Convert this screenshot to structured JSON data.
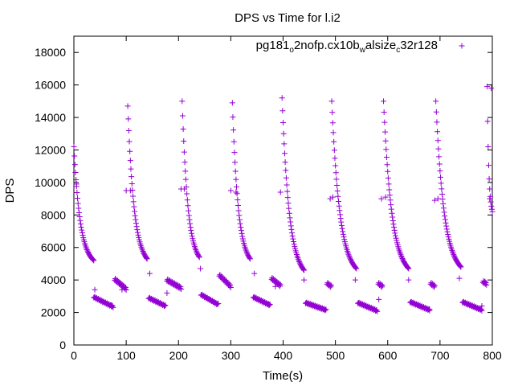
{
  "chart_data": {
    "type": "scatter",
    "title": "DPS vs Time for l.i2",
    "xlabel": "Time(s)",
    "ylabel": "DPS",
    "xlim": [
      0,
      800
    ],
    "ylim": [
      0,
      19000
    ],
    "xticks": [
      0,
      100,
      200,
      300,
      400,
      500,
      600,
      700,
      800
    ],
    "yticks": [
      0,
      2000,
      4000,
      6000,
      8000,
      10000,
      12000,
      14000,
      16000,
      18000
    ],
    "grid": false,
    "legend_position": "top-right",
    "marker": "+",
    "series": [
      {
        "name": "pg181_o2nofp.cx10b_walsize_c32r128",
        "legend_parts": [
          {
            "text": "pg181",
            "shift": "base"
          },
          {
            "text": "o",
            "shift": "sub"
          },
          {
            "text": "2nofp.cx10b",
            "shift": "base"
          },
          {
            "text": "w",
            "shift": "sub"
          },
          {
            "text": "alsize",
            "shift": "base"
          },
          {
            "text": "c",
            "shift": "sub"
          },
          {
            "text": "32r128",
            "shift": "base"
          }
        ],
        "color": "#9400d3",
        "cycles": [
          {
            "start": 0,
            "peak": 12200,
            "end": 38,
            "high_end": 5200,
            "low_start": 38,
            "low_end": 75,
            "low_hi": 2950,
            "low_lo": 2350,
            "plateau_start": 78,
            "plateau_end": 100,
            "plateau_hi": 4050,
            "plateau_lo": 3450
          },
          {
            "start": 103,
            "peak": 14700,
            "end": 140,
            "high_end": 5300,
            "low_start": 143,
            "low_end": 175,
            "low_hi": 2900,
            "low_lo": 2400,
            "plateau_start": 178,
            "plateau_end": 205,
            "plateau_hi": 4000,
            "plateau_lo": 3500
          },
          {
            "start": 207,
            "peak": 15000,
            "end": 240,
            "high_end": 5400,
            "low_start": 243,
            "low_end": 275,
            "low_hi": 3100,
            "low_lo": 2500,
            "plateau_start": 278,
            "plateau_end": 300,
            "plateau_hi": 4300,
            "plateau_lo": 3600
          },
          {
            "start": 303,
            "peak": 14900,
            "end": 337,
            "high_end": 5300,
            "low_start": 343,
            "low_end": 375,
            "low_hi": 2950,
            "low_lo": 2450,
            "plateau_start": 378,
            "plateau_end": 395,
            "plateau_hi": 4100,
            "plateau_lo": 3650
          },
          {
            "start": 398,
            "peak": 15200,
            "end": 440,
            "high_end": 4600,
            "low_start": 443,
            "low_end": 482,
            "low_hi": 2600,
            "low_lo": 2150,
            "plateau_start": 484,
            "plateau_end": 492,
            "plateau_hi": 3800,
            "plateau_lo": 3600
          },
          {
            "start": 493,
            "peak": 15000,
            "end": 540,
            "high_end": 4700,
            "low_start": 543,
            "low_end": 580,
            "low_hi": 2600,
            "low_lo": 2100,
            "plateau_start": 582,
            "plateau_end": 590,
            "plateau_hi": 3800,
            "plateau_lo": 3600
          },
          {
            "start": 592,
            "peak": 15000,
            "end": 640,
            "high_end": 4700,
            "low_start": 643,
            "low_end": 680,
            "low_hi": 2650,
            "low_lo": 2150,
            "plateau_start": 682,
            "plateau_end": 690,
            "plateau_hi": 3800,
            "plateau_lo": 3600
          },
          {
            "start": 692,
            "peak": 15000,
            "end": 740,
            "high_end": 4800,
            "low_start": 743,
            "low_end": 780,
            "low_hi": 2650,
            "low_lo": 2150,
            "plateau_start": 782,
            "plateau_end": 789,
            "plateau_hi": 3900,
            "plateau_lo": 3750
          },
          {
            "start": 790,
            "peak": 15900,
            "end": 800,
            "high_end": 8200
          }
        ],
        "extra_points": [
          [
            5,
            9900
          ],
          [
            40,
            3400
          ],
          [
            72,
            2450
          ],
          [
            92,
            3400
          ],
          [
            100,
            9500
          ],
          [
            108,
            9500
          ],
          [
            145,
            4400
          ],
          [
            178,
            3200
          ],
          [
            195,
            3700
          ],
          [
            205,
            9600
          ],
          [
            211,
            9600
          ],
          [
            242,
            4700
          ],
          [
            276,
            2550
          ],
          [
            300,
            9500
          ],
          [
            310,
            9400
          ],
          [
            345,
            4400
          ],
          [
            373,
            2500
          ],
          [
            385,
            3600
          ],
          [
            395,
            9400
          ],
          [
            440,
            4000
          ],
          [
            490,
            9000
          ],
          [
            495,
            9100
          ],
          [
            538,
            4000
          ],
          [
            583,
            2800
          ],
          [
            588,
            9000
          ],
          [
            596,
            9100
          ],
          [
            640,
            4000
          ],
          [
            680,
            2200
          ],
          [
            690,
            8900
          ],
          [
            696,
            9000
          ],
          [
            737,
            4100
          ],
          [
            780,
            2400
          ],
          [
            786,
            3900
          ],
          [
            795,
            9000
          ],
          [
            798,
            15800
          ]
        ]
      }
    ]
  }
}
